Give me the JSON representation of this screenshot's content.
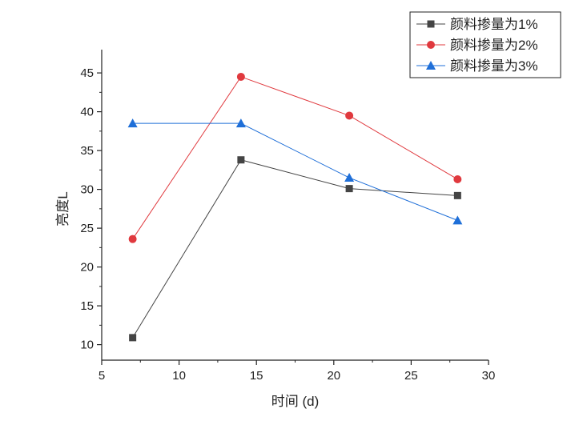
{
  "chart_data": {
    "type": "line",
    "title": "",
    "xlabel": "时间 (d)",
    "ylabel": "亮度L",
    "xlim": [
      5,
      30
    ],
    "ylim": [
      8,
      48
    ],
    "xticks": [
      5,
      10,
      15,
      20,
      25,
      30
    ],
    "yticks": [
      10,
      15,
      20,
      25,
      30,
      35,
      40,
      45
    ],
    "grid": false,
    "legend_position": "top-right",
    "series": [
      {
        "name": "颜料掺量为1%",
        "color": "#444444",
        "marker": "square",
        "x": [
          7,
          14,
          21,
          28
        ],
        "values": [
          10.9,
          33.8,
          30.1,
          29.2
        ]
      },
      {
        "name": "颜料掺量为2%",
        "color": "#e0393e",
        "marker": "circle",
        "x": [
          7,
          14,
          21,
          28
        ],
        "values": [
          23.6,
          44.5,
          39.5,
          31.3
        ]
      },
      {
        "name": "颜料掺量为3%",
        "color": "#1f6fd8",
        "marker": "triangle",
        "x": [
          7,
          14,
          21,
          28
        ],
        "values": [
          38.5,
          38.5,
          31.5,
          26.0
        ]
      }
    ]
  }
}
